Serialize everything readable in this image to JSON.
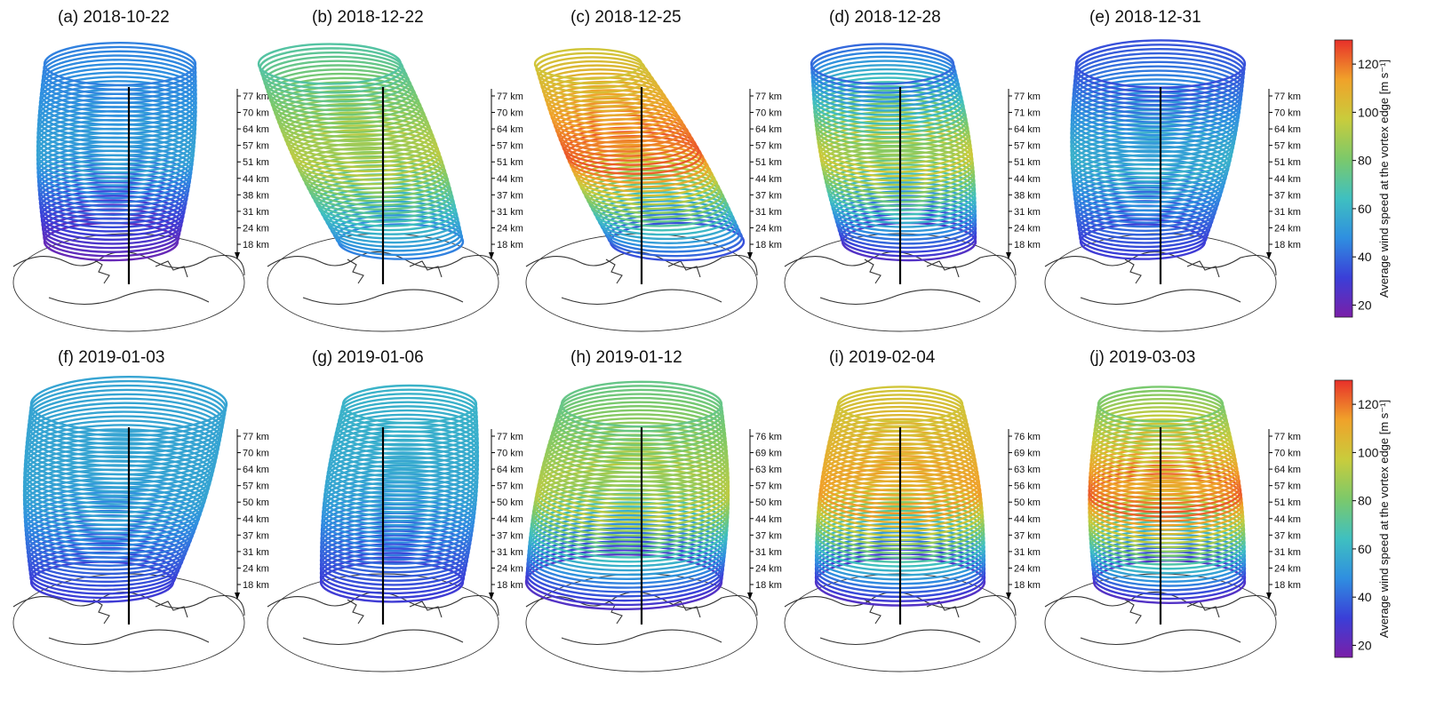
{
  "chart_data": {
    "type": "other",
    "description_kind": "3d-vortex-edge-stack",
    "colorbar": {
      "label": "Average wind speed at the vortex edge [m s⁻¹]",
      "range": [
        15,
        130
      ],
      "ticks": [
        20,
        40,
        60,
        80,
        100,
        120
      ],
      "colors": [
        "#7a1fa8",
        "#3a3fd8",
        "#2f8fe0",
        "#3fc0c0",
        "#7cc96a",
        "#c9cc3c",
        "#f0a22a",
        "#e8302a"
      ]
    },
    "panels": [
      {
        "label": "(a) 2018-10-22",
        "alt_ticks": [
          "77 km",
          "70 km",
          "64 km",
          "57 km",
          "51 km",
          "44 km",
          "38 km",
          "31 km",
          "24 km",
          "18 km"
        ],
        "speed_top": 45,
        "speed_mid": 55,
        "speed_bottom": 20
      },
      {
        "label": "(b) 2018-12-22",
        "alt_ticks": [
          "77 km",
          "70 km",
          "64 km",
          "57 km",
          "51 km",
          "44 km",
          "37 km",
          "31 km",
          "24 km",
          "18 km"
        ],
        "speed_top": 70,
        "speed_mid": 95,
        "speed_bottom": 45
      },
      {
        "label": "(c) 2018-12-25",
        "alt_ticks": [
          "77 km",
          "70 km",
          "64 km",
          "57 km",
          "51 km",
          "44 km",
          "37 km",
          "31 km",
          "24 km",
          "18 km"
        ],
        "speed_top": 100,
        "speed_mid": 125,
        "speed_bottom": 35
      },
      {
        "label": "(d) 2018-12-28",
        "alt_ticks": [
          "77 km",
          "71 km",
          "64 km",
          "57 km",
          "51 km",
          "44 km",
          "38 km",
          "31 km",
          "24 km",
          "18 km"
        ],
        "speed_top": 40,
        "speed_mid": 100,
        "speed_bottom": 25
      },
      {
        "label": "(e) 2018-12-31",
        "alt_ticks": [
          "77 km",
          "70 km",
          "64 km",
          "57 km",
          "51 km",
          "44 km",
          "37 km",
          "31 km",
          "24 km",
          "18 km"
        ],
        "speed_top": 35,
        "speed_mid": 60,
        "speed_bottom": 30
      },
      {
        "label": "(f) 2019-01-03",
        "alt_ticks": [
          "77 km",
          "70 km",
          "64 km",
          "57 km",
          "50 km",
          "44 km",
          "37 km",
          "31 km",
          "24 km",
          "18 km"
        ],
        "speed_top": 55,
        "speed_mid": 55,
        "speed_bottom": 30
      },
      {
        "label": "(g) 2019-01-06",
        "alt_ticks": [
          "77 km",
          "70 km",
          "64 km",
          "57 km",
          "50 km",
          "44 km",
          "37 km",
          "31 km",
          "24 km",
          "18 km"
        ],
        "speed_top": 60,
        "speed_mid": 55,
        "speed_bottom": 30
      },
      {
        "label": "(h) 2019-01-12",
        "alt_ticks": [
          "76 km",
          "69 km",
          "63 km",
          "57 km",
          "50 km",
          "44 km",
          "37 km",
          "31 km",
          "24 km",
          "18 km"
        ],
        "speed_top": 75,
        "speed_mid": 95,
        "speed_bottom": 25
      },
      {
        "label": "(i) 2019-02-04",
        "alt_ticks": [
          "76 km",
          "69 km",
          "63 km",
          "56 km",
          "50 km",
          "44 km",
          "37 km",
          "31 km",
          "24 km",
          "18 km"
        ],
        "speed_top": 100,
        "speed_mid": 115,
        "speed_bottom": 25
      },
      {
        "label": "(j) 2019-03-03",
        "alt_ticks": [
          "77 km",
          "70 km",
          "64 km",
          "57 km",
          "51 km",
          "44 km",
          "37 km",
          "31 km",
          "24 km",
          "18 km"
        ],
        "speed_top": 80,
        "speed_mid": 125,
        "speed_bottom": 25
      }
    ]
  }
}
